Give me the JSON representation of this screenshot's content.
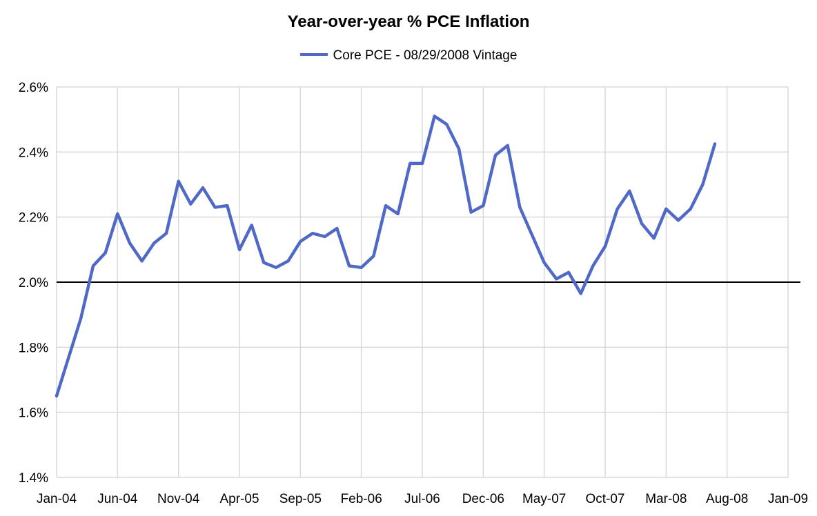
{
  "colors": {
    "series": "#5068C6",
    "grid": "#D9D9D9",
    "baseline": "#000000"
  },
  "chart_data": {
    "type": "line",
    "title": "Year-over-year % PCE Inflation",
    "xlabel": "",
    "ylabel": "",
    "ylim": [
      1.4,
      2.6
    ],
    "yticks": [
      "1.4%",
      "1.6%",
      "1.8%",
      "2.0%",
      "2.2%",
      "2.4%",
      "2.6%"
    ],
    "ytick_values": [
      1.4,
      1.6,
      1.8,
      2.0,
      2.2,
      2.4,
      2.6
    ],
    "xticks": [
      "Jan-04",
      "Jun-04",
      "Nov-04",
      "Apr-05",
      "Sep-05",
      "Feb-06",
      "Jul-06",
      "Dec-06",
      "May-07",
      "Oct-07",
      "Mar-08",
      "Aug-08",
      "Jan-09"
    ],
    "xtick_month_index": [
      0,
      5,
      10,
      15,
      20,
      25,
      30,
      35,
      40,
      45,
      50,
      55,
      60
    ],
    "xlim_month_index": [
      0,
      60
    ],
    "baseline_value": 2.0,
    "legend_position": "top-center",
    "grid": true,
    "series": [
      {
        "name": "Core PCE - 08/29/2008 Vintage",
        "x_month_index": [
          0,
          1,
          2,
          3,
          4,
          5,
          6,
          7,
          8,
          9,
          10,
          11,
          12,
          13,
          14,
          15,
          16,
          17,
          18,
          19,
          20,
          21,
          22,
          23,
          24,
          25,
          26,
          27,
          28,
          29,
          30,
          31,
          32,
          33,
          34,
          35,
          36,
          37,
          38,
          39,
          40,
          41,
          42,
          43,
          44,
          45,
          46,
          47,
          48,
          49,
          50,
          51,
          52,
          53,
          54
        ],
        "values": [
          1.65,
          1.77,
          1.89,
          2.05,
          2.09,
          2.21,
          2.12,
          2.065,
          2.12,
          2.15,
          2.31,
          2.24,
          2.29,
          2.23,
          2.235,
          2.1,
          2.175,
          2.06,
          2.045,
          2.065,
          2.125,
          2.15,
          2.14,
          2.165,
          2.05,
          2.045,
          2.08,
          2.235,
          2.21,
          2.365,
          2.365,
          2.51,
          2.485,
          2.41,
          2.215,
          2.235,
          2.39,
          2.42,
          2.23,
          2.145,
          2.06,
          2.01,
          2.03,
          1.965,
          2.05,
          2.11,
          2.225,
          2.28,
          2.18,
          2.135,
          2.225,
          2.19,
          2.225,
          2.3,
          2.425
        ]
      }
    ]
  }
}
